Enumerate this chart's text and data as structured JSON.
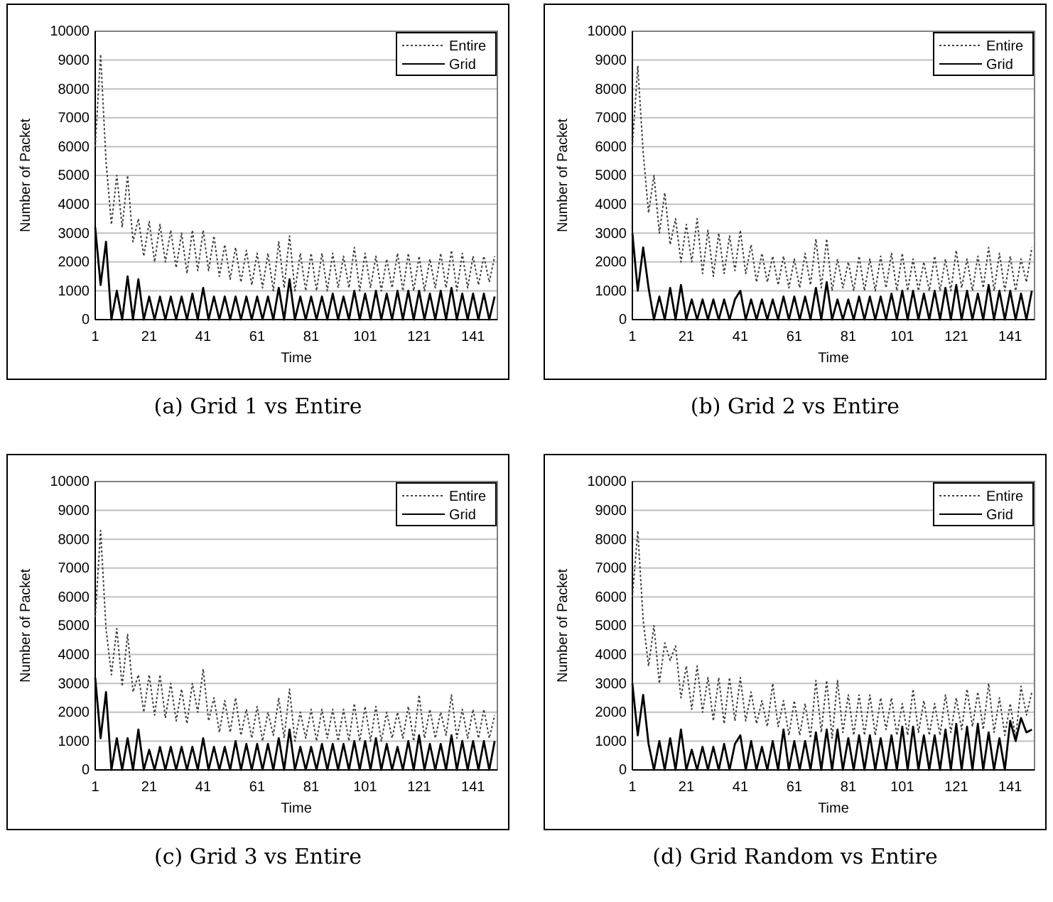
{
  "chart_data": [
    {
      "type": "line",
      "title": "(a)  Grid 1 vs Entire",
      "xlabel": "Time",
      "ylabel": "Number of Packet",
      "x": [
        1,
        3,
        5,
        7,
        9,
        11,
        13,
        15,
        17,
        19,
        21,
        23,
        25,
        27,
        29,
        31,
        33,
        35,
        37,
        39,
        41,
        43,
        45,
        47,
        49,
        51,
        53,
        55,
        57,
        59,
        61,
        63,
        65,
        67,
        69,
        71,
        73,
        75,
        77,
        79,
        81,
        83,
        85,
        87,
        89,
        91,
        93,
        95,
        97,
        99,
        101,
        103,
        105,
        107,
        109,
        111,
        113,
        115,
        117,
        119,
        121,
        123,
        125,
        127,
        129,
        131,
        133,
        135,
        137,
        139,
        141,
        143,
        145,
        147,
        149
      ],
      "series": [
        {
          "name": "Entire",
          "color": "#404040",
          "line_style": "dotted",
          "values": [
            6000,
            9200,
            5500,
            3300,
            5000,
            3200,
            5000,
            2700,
            3500,
            2200,
            3400,
            2000,
            3300,
            2000,
            3100,
            1800,
            3000,
            1600,
            3100,
            1700,
            3100,
            1700,
            2900,
            1500,
            2600,
            1400,
            2500,
            1300,
            2400,
            1200,
            2300,
            1100,
            2300,
            1000,
            2700,
            1100,
            2900,
            1000,
            2300,
            1000,
            2300,
            1000,
            2300,
            1000,
            2300,
            1100,
            2200,
            1100,
            2500,
            1000,
            2300,
            1100,
            2200,
            1000,
            2100,
            1100,
            2300,
            1000,
            2300,
            1000,
            2200,
            1000,
            2100,
            1100,
            2300,
            1100,
            2400,
            1000,
            2300,
            1100,
            2200,
            1200,
            2200,
            1300,
            2200
          ]
        },
        {
          "name": "Grid",
          "color": "#000000",
          "line_style": "solid",
          "values": [
            3200,
            1200,
            2700,
            0,
            1000,
            0,
            1500,
            0,
            1400,
            0,
            800,
            0,
            800,
            0,
            800,
            0,
            800,
            0,
            900,
            0,
            1100,
            0,
            800,
            0,
            800,
            0,
            800,
            0,
            800,
            0,
            800,
            0,
            800,
            0,
            1100,
            0,
            1400,
            0,
            800,
            0,
            800,
            0,
            800,
            0,
            900,
            0,
            800,
            0,
            1000,
            0,
            900,
            0,
            1000,
            0,
            900,
            0,
            1000,
            0,
            1000,
            0,
            1000,
            0,
            900,
            0,
            1000,
            0,
            1100,
            0,
            900,
            0,
            900,
            0,
            900,
            0,
            800
          ]
        }
      ],
      "xlim": [
        1,
        150
      ],
      "xticks": [
        1,
        21,
        41,
        61,
        81,
        101,
        121,
        141
      ],
      "ylim": [
        0,
        10000
      ],
      "yticks": [
        0,
        1000,
        2000,
        3000,
        4000,
        5000,
        6000,
        7000,
        8000,
        9000,
        10000
      ],
      "grid": "y",
      "legend": "top right"
    },
    {
      "type": "line",
      "title": "(b)  Grid 2 vs Entire",
      "xlabel": "Time",
      "ylabel": "Number of Packet",
      "x": [
        1,
        3,
        5,
        7,
        9,
        11,
        13,
        15,
        17,
        19,
        21,
        23,
        25,
        27,
        29,
        31,
        33,
        35,
        37,
        39,
        41,
        43,
        45,
        47,
        49,
        51,
        53,
        55,
        57,
        59,
        61,
        63,
        65,
        67,
        69,
        71,
        73,
        75,
        77,
        79,
        81,
        83,
        85,
        87,
        89,
        91,
        93,
        95,
        97,
        99,
        101,
        103,
        105,
        107,
        109,
        111,
        113,
        115,
        117,
        119,
        121,
        123,
        125,
        127,
        129,
        131,
        133,
        135,
        137,
        139,
        141,
        143,
        145,
        147,
        149
      ],
      "series": [
        {
          "name": "Entire",
          "color": "#404040",
          "line_style": "dotted",
          "values": [
            6000,
            8800,
            5800,
            3700,
            5000,
            3000,
            4400,
            2600,
            3500,
            2000,
            3300,
            2000,
            3500,
            1600,
            3100,
            1500,
            3000,
            1600,
            2900,
            1700,
            3100,
            1600,
            2600,
            1300,
            2300,
            1300,
            2200,
            1200,
            2200,
            1100,
            2100,
            1100,
            2300,
            1200,
            2800,
            1100,
            2800,
            1000,
            2100,
            1100,
            2000,
            1000,
            2200,
            1000,
            2100,
            1000,
            2200,
            1100,
            2300,
            1000,
            2300,
            1000,
            2100,
            1000,
            2000,
            1000,
            2200,
            1000,
            2100,
            1000,
            2400,
            1100,
            2100,
            1000,
            2200,
            1100,
            2500,
            1000,
            2300,
            1000,
            2200,
            1000,
            2100,
            1300,
            2500
          ]
        },
        {
          "name": "Grid",
          "color": "#000000",
          "line_style": "solid",
          "values": [
            3000,
            1000,
            2500,
            1100,
            0,
            800,
            0,
            1100,
            0,
            1200,
            0,
            700,
            0,
            700,
            0,
            700,
            0,
            700,
            0,
            700,
            1000,
            0,
            700,
            0,
            700,
            0,
            700,
            0,
            800,
            0,
            800,
            0,
            800,
            0,
            1100,
            0,
            1300,
            0,
            700,
            0,
            700,
            0,
            800,
            0,
            800,
            0,
            800,
            0,
            900,
            0,
            1000,
            0,
            1000,
            0,
            900,
            0,
            1000,
            0,
            1100,
            0,
            1200,
            0,
            1000,
            0,
            900,
            0,
            1200,
            0,
            1000,
            0,
            1000,
            0,
            900,
            0,
            1000
          ]
        }
      ],
      "xlim": [
        1,
        150
      ],
      "xticks": [
        1,
        21,
        41,
        61,
        81,
        101,
        121,
        141
      ],
      "ylim": [
        0,
        10000
      ],
      "yticks": [
        0,
        1000,
        2000,
        3000,
        4000,
        5000,
        6000,
        7000,
        8000,
        9000,
        10000
      ],
      "grid": "y",
      "legend": "top right"
    },
    {
      "type": "line",
      "title": "(c)  Grid 3 vs Entire",
      "xlabel": "Time",
      "ylabel": "Number of Packet",
      "x": [
        1,
        3,
        5,
        7,
        9,
        11,
        13,
        15,
        17,
        19,
        21,
        23,
        25,
        27,
        29,
        31,
        33,
        35,
        37,
        39,
        41,
        43,
        45,
        47,
        49,
        51,
        53,
        55,
        57,
        59,
        61,
        63,
        65,
        67,
        69,
        71,
        73,
        75,
        77,
        79,
        81,
        83,
        85,
        87,
        89,
        91,
        93,
        95,
        97,
        99,
        101,
        103,
        105,
        107,
        109,
        111,
        113,
        115,
        117,
        119,
        121,
        123,
        125,
        127,
        129,
        131,
        133,
        135,
        137,
        139,
        141,
        143,
        145,
        147,
        149
      ],
      "series": [
        {
          "name": "Entire",
          "color": "#404040",
          "line_style": "dotted",
          "values": [
            5300,
            8300,
            4900,
            3300,
            4900,
            2900,
            4700,
            2700,
            3300,
            2000,
            3300,
            1900,
            3300,
            1800,
            3000,
            1700,
            2800,
            1600,
            3000,
            2000,
            3500,
            1700,
            2500,
            1300,
            2400,
            1300,
            2500,
            1200,
            2100,
            1100,
            2200,
            1000,
            2000,
            1200,
            2500,
            1100,
            2800,
            1000,
            2000,
            1100,
            2100,
            1000,
            2100,
            1100,
            2100,
            1000,
            2100,
            1000,
            2300,
            1000,
            2200,
            1000,
            2200,
            1000,
            2000,
            1100,
            2000,
            1100,
            2200,
            1000,
            2600,
            1100,
            2100,
            1100,
            2000,
            1200,
            2600,
            1100,
            2100,
            1100,
            2100,
            1100,
            2100,
            1100,
            1900
          ]
        },
        {
          "name": "Grid",
          "color": "#000000",
          "line_style": "solid",
          "values": [
            3200,
            1100,
            2700,
            0,
            1100,
            0,
            1100,
            0,
            1400,
            0,
            700,
            0,
            800,
            0,
            800,
            0,
            800,
            0,
            800,
            0,
            1100,
            0,
            800,
            0,
            800,
            0,
            1000,
            0,
            900,
            0,
            900,
            0,
            900,
            0,
            1100,
            0,
            1400,
            0,
            800,
            0,
            800,
            0,
            900,
            0,
            900,
            0,
            900,
            0,
            1000,
            0,
            1000,
            0,
            1100,
            0,
            900,
            0,
            800,
            0,
            1000,
            0,
            1200,
            0,
            900,
            0,
            900,
            0,
            1200,
            0,
            1000,
            0,
            1000,
            0,
            1000,
            0,
            1000
          ]
        }
      ],
      "xlim": [
        1,
        150
      ],
      "xticks": [
        1,
        21,
        41,
        61,
        81,
        101,
        121,
        141
      ],
      "ylim": [
        0,
        10000
      ],
      "yticks": [
        0,
        1000,
        2000,
        3000,
        4000,
        5000,
        6000,
        7000,
        8000,
        9000,
        10000
      ],
      "grid": "y",
      "legend": "top right"
    },
    {
      "type": "line",
      "title": "(d)  Grid Random vs Entire",
      "xlabel": "Time",
      "ylabel": "Number of Packet",
      "x": [
        1,
        3,
        5,
        7,
        9,
        11,
        13,
        15,
        17,
        19,
        21,
        23,
        25,
        27,
        29,
        31,
        33,
        35,
        37,
        39,
        41,
        43,
        45,
        47,
        49,
        51,
        53,
        55,
        57,
        59,
        61,
        63,
        65,
        67,
        69,
        71,
        73,
        75,
        77,
        79,
        81,
        83,
        85,
        87,
        89,
        91,
        93,
        95,
        97,
        99,
        101,
        103,
        105,
        107,
        109,
        111,
        113,
        115,
        117,
        119,
        121,
        123,
        125,
        127,
        129,
        131,
        133,
        135,
        137,
        139,
        141,
        143,
        145,
        147,
        149
      ],
      "series": [
        {
          "name": "Entire",
          "color": "#404040",
          "line_style": "dotted",
          "values": [
            6000,
            8300,
            5200,
            3600,
            5000,
            3000,
            4400,
            3800,
            4300,
            2500,
            3600,
            2100,
            3600,
            2000,
            3200,
            1700,
            3200,
            1600,
            3200,
            1700,
            3200,
            1700,
            2700,
            1600,
            2400,
            1500,
            3000,
            1500,
            2400,
            1200,
            2400,
            1200,
            2300,
            1100,
            3100,
            1300,
            3100,
            1100,
            3100,
            1300,
            2600,
            1200,
            2600,
            1200,
            2600,
            1200,
            2500,
            1400,
            2500,
            1200,
            2300,
            1200,
            2800,
            1300,
            2400,
            1200,
            2300,
            1200,
            2600,
            1300,
            2500,
            1400,
            2800,
            1500,
            2700,
            1400,
            3000,
            1300,
            2500,
            1200,
            2300,
            1100,
            2900,
            1900,
            2700
          ]
        },
        {
          "name": "Grid",
          "color": "#000000",
          "line_style": "solid",
          "values": [
            3000,
            1200,
            2600,
            900,
            0,
            1000,
            0,
            1100,
            0,
            1400,
            0,
            700,
            0,
            800,
            0,
            800,
            0,
            900,
            0,
            900,
            1200,
            0,
            1000,
            0,
            800,
            0,
            1000,
            0,
            1400,
            0,
            1000,
            0,
            1000,
            0,
            1300,
            0,
            1400,
            0,
            1400,
            0,
            1100,
            0,
            1200,
            0,
            1200,
            0,
            1100,
            0,
            1200,
            0,
            1500,
            0,
            1500,
            0,
            1200,
            0,
            1200,
            0,
            1400,
            0,
            1600,
            0,
            1500,
            0,
            1600,
            0,
            1300,
            0,
            1100,
            0,
            1700,
            1000,
            1800,
            1300,
            1400
          ]
        }
      ],
      "xlim": [
        1,
        150
      ],
      "xticks": [
        1,
        21,
        41,
        61,
        81,
        101,
        121,
        141
      ],
      "ylim": [
        0,
        10000
      ],
      "yticks": [
        0,
        1000,
        2000,
        3000,
        4000,
        5000,
        6000,
        7000,
        8000,
        9000,
        10000
      ],
      "grid": "y",
      "legend": "top right"
    }
  ]
}
